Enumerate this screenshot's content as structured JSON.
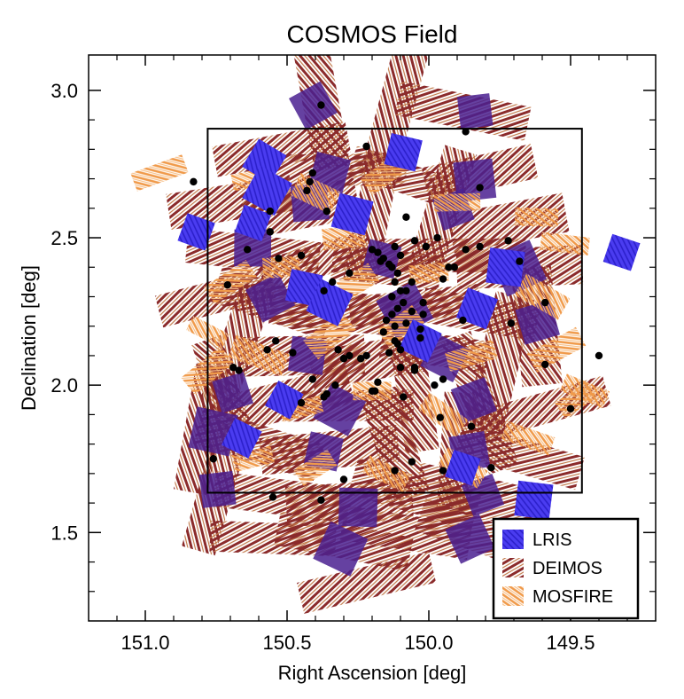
{
  "chart_data": {
    "type": "scatter",
    "title": "COSMOS Field",
    "xlabel": "Right Ascension [deg]",
    "ylabel": "Declination [deg]",
    "xlim": [
      151.2,
      149.2
    ],
    "ylim": [
      1.2,
      3.12
    ],
    "x_ticks": [
      151.0,
      150.5,
      150.0,
      149.5
    ],
    "x_tick_labels": [
      "151.0",
      "150.5",
      "150.0",
      "149.5"
    ],
    "y_ticks": [
      1.5,
      2.0,
      2.5,
      3.0
    ],
    "y_tick_labels": [
      "1.5",
      "2.0",
      "2.5",
      "3.0"
    ],
    "grid": false,
    "legend_position": "bottom-right",
    "colors": {
      "LRIS": "#3a2ce8",
      "DEIMOS": "#8b2b2b",
      "MOSFIRE": "#f09a4a",
      "overlap": "#4a2090",
      "points": "#000000",
      "field_box": "#000000"
    },
    "field_box": {
      "ra": [
        150.78,
        149.46
      ],
      "dec": [
        1.635,
        2.87
      ]
    },
    "series": [
      {
        "name": "LRIS",
        "mark": "square",
        "masks": [
          [
            150.58,
            2.76
          ],
          [
            150.82,
            2.52
          ],
          [
            150.44,
            2.33
          ],
          [
            150.35,
            2.28
          ],
          [
            150.66,
            1.82
          ],
          [
            149.32,
            2.45
          ],
          [
            149.63,
            1.61
          ],
          [
            150.09,
            2.79
          ],
          [
            149.88,
            1.72
          ],
          [
            150.27,
            2.58
          ],
          [
            150.62,
            2.55
          ],
          [
            149.83,
            2.26
          ],
          [
            150.51,
            1.95
          ],
          [
            150.03,
            2.15
          ],
          [
            149.73,
            2.4
          ],
          [
            150.57,
            2.66
          ]
        ]
      },
      {
        "name": "DEIMOS",
        "mark": "slit",
        "masks": [
          [
            150.38,
            2.95
          ],
          [
            150.12,
            2.93
          ],
          [
            149.88,
            2.93
          ],
          [
            150.52,
            2.8
          ],
          [
            150.32,
            2.73
          ],
          [
            150.08,
            2.7
          ],
          [
            149.82,
            2.72
          ],
          [
            150.7,
            2.62
          ],
          [
            150.45,
            2.6
          ],
          [
            150.2,
            2.57
          ],
          [
            149.95,
            2.6
          ],
          [
            149.72,
            2.55
          ],
          [
            150.62,
            2.45
          ],
          [
            150.4,
            2.42
          ],
          [
            150.15,
            2.4
          ],
          [
            149.92,
            2.44
          ],
          [
            149.68,
            2.4
          ],
          [
            150.75,
            2.3
          ],
          [
            150.55,
            2.28
          ],
          [
            150.3,
            2.25
          ],
          [
            150.05,
            2.27
          ],
          [
            149.82,
            2.24
          ],
          [
            149.62,
            2.2
          ],
          [
            150.68,
            2.12
          ],
          [
            150.45,
            2.1
          ],
          [
            150.22,
            2.08
          ],
          [
            149.98,
            2.12
          ],
          [
            149.75,
            2.08
          ],
          [
            150.72,
            1.97
          ],
          [
            150.5,
            1.95
          ],
          [
            150.28,
            1.93
          ],
          [
            150.05,
            1.96
          ],
          [
            149.82,
            1.94
          ],
          [
            149.6,
            1.92
          ],
          [
            150.8,
            1.85
          ],
          [
            150.6,
            1.8
          ],
          [
            150.35,
            1.78
          ],
          [
            150.12,
            1.8
          ],
          [
            149.9,
            1.78
          ],
          [
            149.68,
            1.76
          ],
          [
            150.75,
            1.65
          ],
          [
            150.52,
            1.62
          ],
          [
            150.28,
            1.6
          ],
          [
            150.05,
            1.63
          ],
          [
            149.82,
            1.62
          ],
          [
            150.55,
            1.48
          ],
          [
            150.3,
            1.47
          ],
          [
            150.08,
            1.5
          ],
          [
            149.85,
            1.5
          ],
          [
            150.22,
            1.33
          ]
        ]
      },
      {
        "name": "MOSFIRE",
        "mark": "slit-fine",
        "masks": [
          [
            150.95,
            2.72
          ],
          [
            150.62,
            2.7
          ],
          [
            150.4,
            2.65
          ],
          [
            150.15,
            2.72
          ],
          [
            149.9,
            2.62
          ],
          [
            149.62,
            2.57
          ],
          [
            149.52,
            2.48
          ],
          [
            150.7,
            2.35
          ],
          [
            150.52,
            2.4
          ],
          [
            150.25,
            2.35
          ],
          [
            150.0,
            2.38
          ],
          [
            149.6,
            2.3
          ],
          [
            150.78,
            2.18
          ],
          [
            150.6,
            2.1
          ],
          [
            150.35,
            2.17
          ],
          [
            150.1,
            2.2
          ],
          [
            149.85,
            2.1
          ],
          [
            149.55,
            2.12
          ],
          [
            150.78,
            2.05
          ],
          [
            150.45,
            1.92
          ],
          [
            150.2,
            1.98
          ],
          [
            149.95,
            1.9
          ],
          [
            149.48,
            1.95
          ],
          [
            150.62,
            1.75
          ],
          [
            150.4,
            1.72
          ],
          [
            150.15,
            1.7
          ],
          [
            149.88,
            1.72
          ],
          [
            149.65,
            1.82
          ],
          [
            149.45,
            1.98
          ],
          [
            150.3,
            2.5
          ]
        ]
      },
      {
        "name": "points",
        "mark": "dot",
        "x": [
          150.38,
          150.22,
          149.87,
          150.41,
          150.42,
          150.43,
          150.83,
          150.36,
          149.82,
          150.08,
          150.56,
          150.56,
          149.97,
          150.01,
          149.87,
          150.64,
          150.53,
          150.45,
          149.72,
          150.37,
          149.68,
          149.59,
          149.71,
          149.4,
          150.54,
          150.69,
          150.3,
          150.41,
          150.67,
          150.57,
          150.33,
          150.36,
          150.37,
          150.2,
          150.09,
          150.12,
          149.95,
          150.06,
          149.96,
          149.59,
          149.85,
          149.78,
          150.76,
          149.5,
          150.55,
          150.38,
          149.91,
          150.18,
          150.17,
          150.28,
          150.34,
          149.95,
          150.71,
          149.82,
          150.05,
          150.12,
          150.1,
          150.14,
          150.11,
          150.12,
          150.1,
          150.13,
          150.09,
          150.11,
          150.13,
          150.15,
          150.12,
          150.16,
          150.12,
          150.11,
          150.1,
          150.14,
          150.06,
          150.08,
          150.03,
          150.03,
          150.02,
          150.08,
          150.06,
          150.13,
          150.16,
          150.2,
          150.22,
          150.24,
          150.28,
          150.32,
          150.1,
          150.18,
          150.19,
          150.05,
          149.95,
          150.02,
          149.88,
          150.45,
          150.48,
          150.3,
          150.05,
          149.98,
          149.93
        ],
        "y": [
          2.95,
          2.81,
          2.86,
          2.72,
          2.69,
          2.66,
          2.69,
          2.59,
          2.67,
          2.57,
          2.59,
          2.52,
          2.5,
          2.47,
          2.46,
          2.46,
          2.43,
          2.44,
          2.49,
          2.32,
          2.42,
          2.28,
          2.21,
          2.1,
          2.15,
          2.06,
          2.09,
          2.02,
          2.05,
          2.12,
          2.0,
          1.97,
          1.96,
          1.98,
          1.96,
          1.71,
          1.71,
          1.74,
          1.89,
          2.07,
          1.86,
          1.72,
          1.75,
          1.92,
          1.62,
          1.61,
          2.4,
          2.45,
          2.42,
          2.38,
          2.35,
          2.36,
          2.34,
          2.47,
          2.49,
          2.47,
          2.44,
          2.41,
          2.38,
          2.35,
          2.32,
          2.3,
          2.28,
          2.26,
          2.24,
          2.22,
          2.2,
          2.18,
          2.15,
          2.14,
          2.12,
          2.11,
          2.25,
          2.21,
          2.19,
          2.16,
          2.28,
          2.32,
          2.35,
          2.4,
          2.43,
          2.46,
          2.1,
          2.09,
          2.1,
          2.12,
          2.06,
          2.01,
          1.98,
          2.05,
          2.02,
          2.24,
          2.22,
          1.94,
          2.11,
          1.68,
          2.06,
          2.0,
          2.4
        ]
      }
    ]
  }
}
